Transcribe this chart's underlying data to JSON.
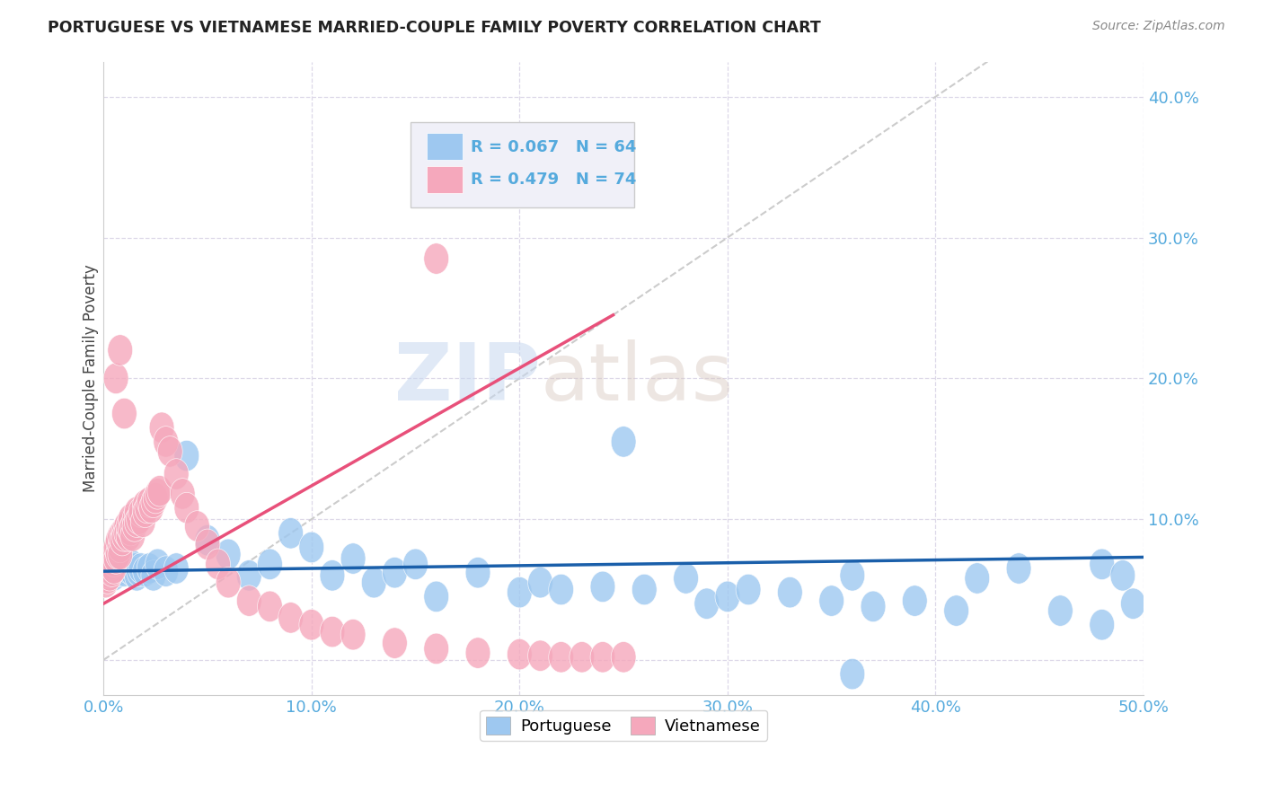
{
  "title": "PORTUGUESE VS VIETNAMESE MARRIED-COUPLE FAMILY POVERTY CORRELATION CHART",
  "source": "Source: ZipAtlas.com",
  "ylabel": "Married-Couple Family Poverty",
  "xlim": [
    0.0,
    0.5
  ],
  "ylim": [
    -0.025,
    0.425
  ],
  "xticks": [
    0.0,
    0.1,
    0.2,
    0.3,
    0.4,
    0.5
  ],
  "yticks": [
    0.0,
    0.1,
    0.2,
    0.3,
    0.4
  ],
  "xticklabels": [
    "0.0%",
    "10.0%",
    "20.0%",
    "30.0%",
    "40.0%",
    "50.0%"
  ],
  "yticklabels": [
    "",
    "10.0%",
    "20.0%",
    "30.0%",
    "40.0%"
  ],
  "portuguese_R": 0.067,
  "portuguese_N": 64,
  "vietnamese_R": 0.479,
  "vietnamese_N": 74,
  "portuguese_color": "#9ec8f0",
  "vietnamese_color": "#f5a8bc",
  "portuguese_line_color": "#1a5faa",
  "vietnamese_line_color": "#e8507a",
  "diag_line_color": "#cccccc",
  "background_color": "#ffffff",
  "grid_color": "#ddd8e8",
  "watermark_color": "#d0ddf0",
  "legend_box_color": "#f0f0f8",
  "legend_border_color": "#cccccc",
  "title_color": "#222222",
  "source_color": "#888888",
  "ylabel_color": "#444444",
  "tick_color": "#55aadd",
  "port_x": [
    0.002,
    0.003,
    0.004,
    0.005,
    0.006,
    0.007,
    0.007,
    0.008,
    0.008,
    0.009,
    0.01,
    0.01,
    0.011,
    0.012,
    0.013,
    0.014,
    0.015,
    0.016,
    0.017,
    0.018,
    0.02,
    0.022,
    0.024,
    0.026,
    0.03,
    0.035,
    0.04,
    0.05,
    0.06,
    0.07,
    0.08,
    0.09,
    0.1,
    0.11,
    0.12,
    0.13,
    0.14,
    0.15,
    0.16,
    0.18,
    0.2,
    0.21,
    0.22,
    0.24,
    0.25,
    0.26,
    0.28,
    0.29,
    0.3,
    0.31,
    0.33,
    0.35,
    0.36,
    0.37,
    0.39,
    0.41,
    0.42,
    0.44,
    0.46,
    0.48,
    0.49,
    0.495,
    0.48,
    0.36
  ],
  "port_y": [
    0.063,
    0.062,
    0.065,
    0.06,
    0.065,
    0.063,
    0.068,
    0.066,
    0.07,
    0.065,
    0.068,
    0.063,
    0.07,
    0.065,
    0.068,
    0.063,
    0.065,
    0.06,
    0.063,
    0.065,
    0.063,
    0.065,
    0.06,
    0.068,
    0.063,
    0.065,
    0.145,
    0.085,
    0.075,
    0.06,
    0.068,
    0.09,
    0.08,
    0.06,
    0.072,
    0.055,
    0.062,
    0.068,
    0.045,
    0.062,
    0.048,
    0.055,
    0.05,
    0.052,
    0.155,
    0.05,
    0.058,
    0.04,
    0.045,
    0.05,
    0.048,
    0.042,
    0.06,
    0.038,
    0.042,
    0.035,
    0.058,
    0.065,
    0.035,
    0.068,
    0.06,
    0.04,
    0.025,
    -0.01
  ],
  "viet_x": [
    0.001,
    0.002,
    0.002,
    0.003,
    0.003,
    0.004,
    0.004,
    0.005,
    0.005,
    0.005,
    0.006,
    0.006,
    0.007,
    0.007,
    0.008,
    0.008,
    0.008,
    0.009,
    0.009,
    0.01,
    0.01,
    0.011,
    0.011,
    0.012,
    0.012,
    0.013,
    0.013,
    0.014,
    0.014,
    0.015,
    0.015,
    0.016,
    0.016,
    0.017,
    0.018,
    0.019,
    0.02,
    0.02,
    0.021,
    0.022,
    0.023,
    0.024,
    0.025,
    0.026,
    0.027,
    0.028,
    0.03,
    0.032,
    0.035,
    0.038,
    0.04,
    0.045,
    0.05,
    0.055,
    0.06,
    0.07,
    0.08,
    0.09,
    0.1,
    0.11,
    0.12,
    0.14,
    0.16,
    0.18,
    0.2,
    0.21,
    0.22,
    0.23,
    0.24,
    0.25,
    0.006,
    0.008,
    0.01,
    0.16
  ],
  "viet_y": [
    0.055,
    0.058,
    0.062,
    0.06,
    0.065,
    0.068,
    0.063,
    0.07,
    0.075,
    0.065,
    0.072,
    0.08,
    0.075,
    0.085,
    0.08,
    0.088,
    0.075,
    0.09,
    0.085,
    0.092,
    0.088,
    0.095,
    0.09,
    0.088,
    0.095,
    0.1,
    0.092,
    0.095,
    0.088,
    0.1,
    0.095,
    0.105,
    0.098,
    0.1,
    0.105,
    0.098,
    0.11,
    0.105,
    0.108,
    0.112,
    0.108,
    0.112,
    0.115,
    0.118,
    0.12,
    0.165,
    0.155,
    0.148,
    0.132,
    0.118,
    0.108,
    0.095,
    0.082,
    0.068,
    0.055,
    0.042,
    0.038,
    0.03,
    0.025,
    0.02,
    0.018,
    0.012,
    0.008,
    0.005,
    0.004,
    0.003,
    0.002,
    0.002,
    0.002,
    0.002,
    0.2,
    0.22,
    0.175,
    0.285
  ]
}
